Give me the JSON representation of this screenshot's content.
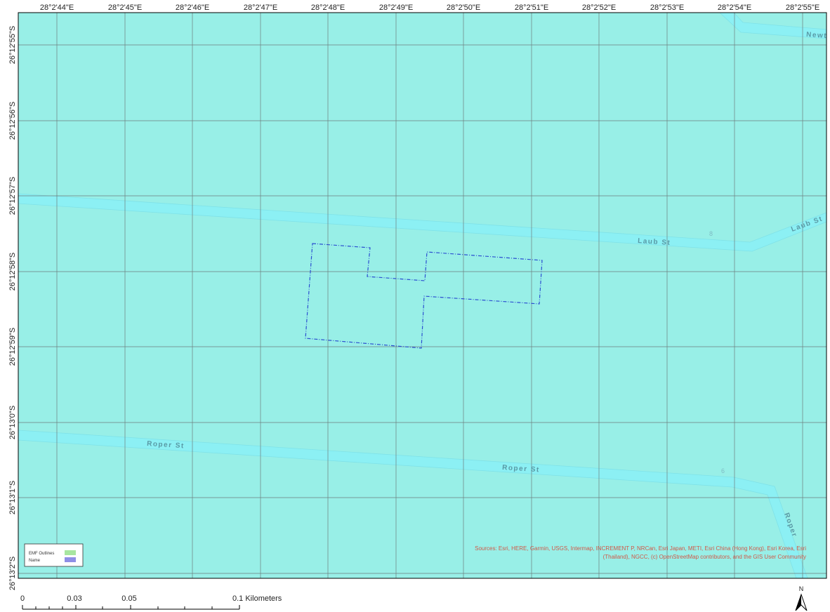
{
  "map": {
    "colors": {
      "land": "#98efe7",
      "road": "#8cf0f4",
      "road_edge": "#7fe2e8",
      "grid": "#6e7e7e",
      "site_outline": "#2c4fd0",
      "frame": "#000000",
      "legend_emf": "#a8e6a0",
      "legend_name": "#8f8fe6",
      "attribution": "#d05848",
      "street_label": "#5a9aa6"
    },
    "longitude_labels": [
      "28°2'44\"E",
      "28°2'45\"E",
      "28°2'46\"E",
      "28°2'47\"E",
      "28°2'48\"E",
      "28°2'49\"E",
      "28°2'50\"E",
      "28°2'51\"E",
      "28°2'52\"E",
      "28°2'53\"E",
      "28°2'54\"E",
      "28°2'55\"E"
    ],
    "latitude_labels": [
      "26°12'55\"S",
      "26°12'56\"S",
      "26°12'57\"S",
      "26°12'58\"S",
      "26°12'59\"S",
      "26°13'0\"S",
      "26°13'1\"S",
      "26°13'2\"S"
    ],
    "streets": {
      "laub_1": "Laub St",
      "laub_2": "Laub St",
      "roper_1": "Roper St",
      "roper_2": "Roper St",
      "roper_3": "Roper",
      "newt": "Newt"
    },
    "house_numbers": {
      "n8": "8",
      "n6": "6"
    },
    "legend": {
      "items": [
        {
          "label": "EMF Outlines",
          "color": "#a8e6a0"
        },
        {
          "label": "Name",
          "color": "#8f8fe6"
        }
      ]
    },
    "attribution": {
      "line1": "Sources: Esri, HERE, Garmin, USGS, Intermap, INCREMENT P, NRCan, Esri Japan, METI, Esri China (Hong Kong), Esri Korea, Esri",
      "line2": "(Thailand), NGCC, (c) OpenStreetMap contributors, and the GIS User Community"
    },
    "scale_bar": {
      "labels": [
        "0",
        "0.03",
        "0.05",
        "0.1 Kilometers"
      ]
    },
    "north_arrow": {
      "label": "N"
    }
  }
}
